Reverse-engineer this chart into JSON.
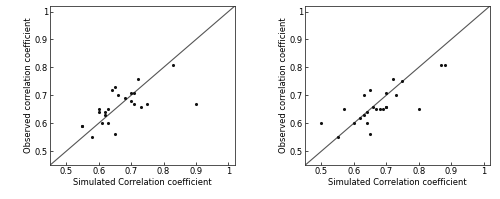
{
  "gaussian_x": [
    0.55,
    0.55,
    0.58,
    0.6,
    0.6,
    0.61,
    0.62,
    0.62,
    0.63,
    0.63,
    0.64,
    0.65,
    0.65,
    0.66,
    0.68,
    0.7,
    0.7,
    0.71,
    0.71,
    0.72,
    0.73,
    0.75,
    0.83,
    0.9
  ],
  "gaussian_y": [
    0.59,
    0.59,
    0.55,
    0.64,
    0.65,
    0.6,
    0.63,
    0.64,
    0.6,
    0.65,
    0.72,
    0.73,
    0.56,
    0.7,
    0.69,
    0.71,
    0.68,
    0.71,
    0.67,
    0.76,
    0.66,
    0.67,
    0.81,
    0.67
  ],
  "gumbel_x": [
    0.5,
    0.55,
    0.57,
    0.6,
    0.62,
    0.63,
    0.63,
    0.64,
    0.64,
    0.65,
    0.65,
    0.66,
    0.67,
    0.68,
    0.69,
    0.7,
    0.7,
    0.7,
    0.72,
    0.73,
    0.75,
    0.8,
    0.87,
    0.88
  ],
  "gumbel_y": [
    0.6,
    0.55,
    0.65,
    0.6,
    0.62,
    0.63,
    0.7,
    0.64,
    0.6,
    0.72,
    0.56,
    0.66,
    0.65,
    0.65,
    0.65,
    0.66,
    0.66,
    0.71,
    0.76,
    0.7,
    0.75,
    0.65,
    0.81,
    0.81
  ],
  "xlim": [
    0.45,
    1.02
  ],
  "ylim": [
    0.45,
    1.02
  ],
  "xticks": [
    0.5,
    0.6,
    0.7,
    0.8,
    0.9,
    1.0
  ],
  "yticks": [
    0.5,
    0.6,
    0.7,
    0.8,
    0.9,
    1.0
  ],
  "xlabel": "Simulated Correlation coefficient",
  "ylabel": "Observed correlation coefficient",
  "line_color": "#555555",
  "dot_color": "#111111",
  "dot_size": 5,
  "tick_fontsize": 6,
  "label_fontsize": 6
}
